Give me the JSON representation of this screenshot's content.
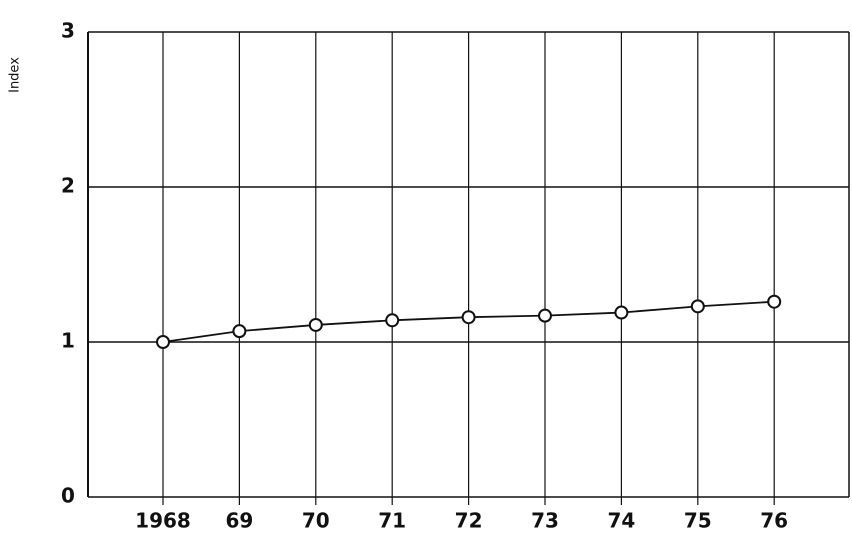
{
  "chart_data": {
    "type": "line",
    "y_label": "Index",
    "categories": [
      "1968",
      "69",
      "70",
      "71",
      "72",
      "73",
      "74",
      "75",
      "76"
    ],
    "series": [
      {
        "color": "#111111",
        "values": [
          1.0,
          1.07,
          1.11,
          1.14,
          1.16,
          1.17,
          1.19,
          1.23,
          1.26
        ]
      }
    ],
    "ylim": [
      0,
      3
    ],
    "yticks": [
      0,
      1,
      2,
      3
    ],
    "grid": true
  }
}
